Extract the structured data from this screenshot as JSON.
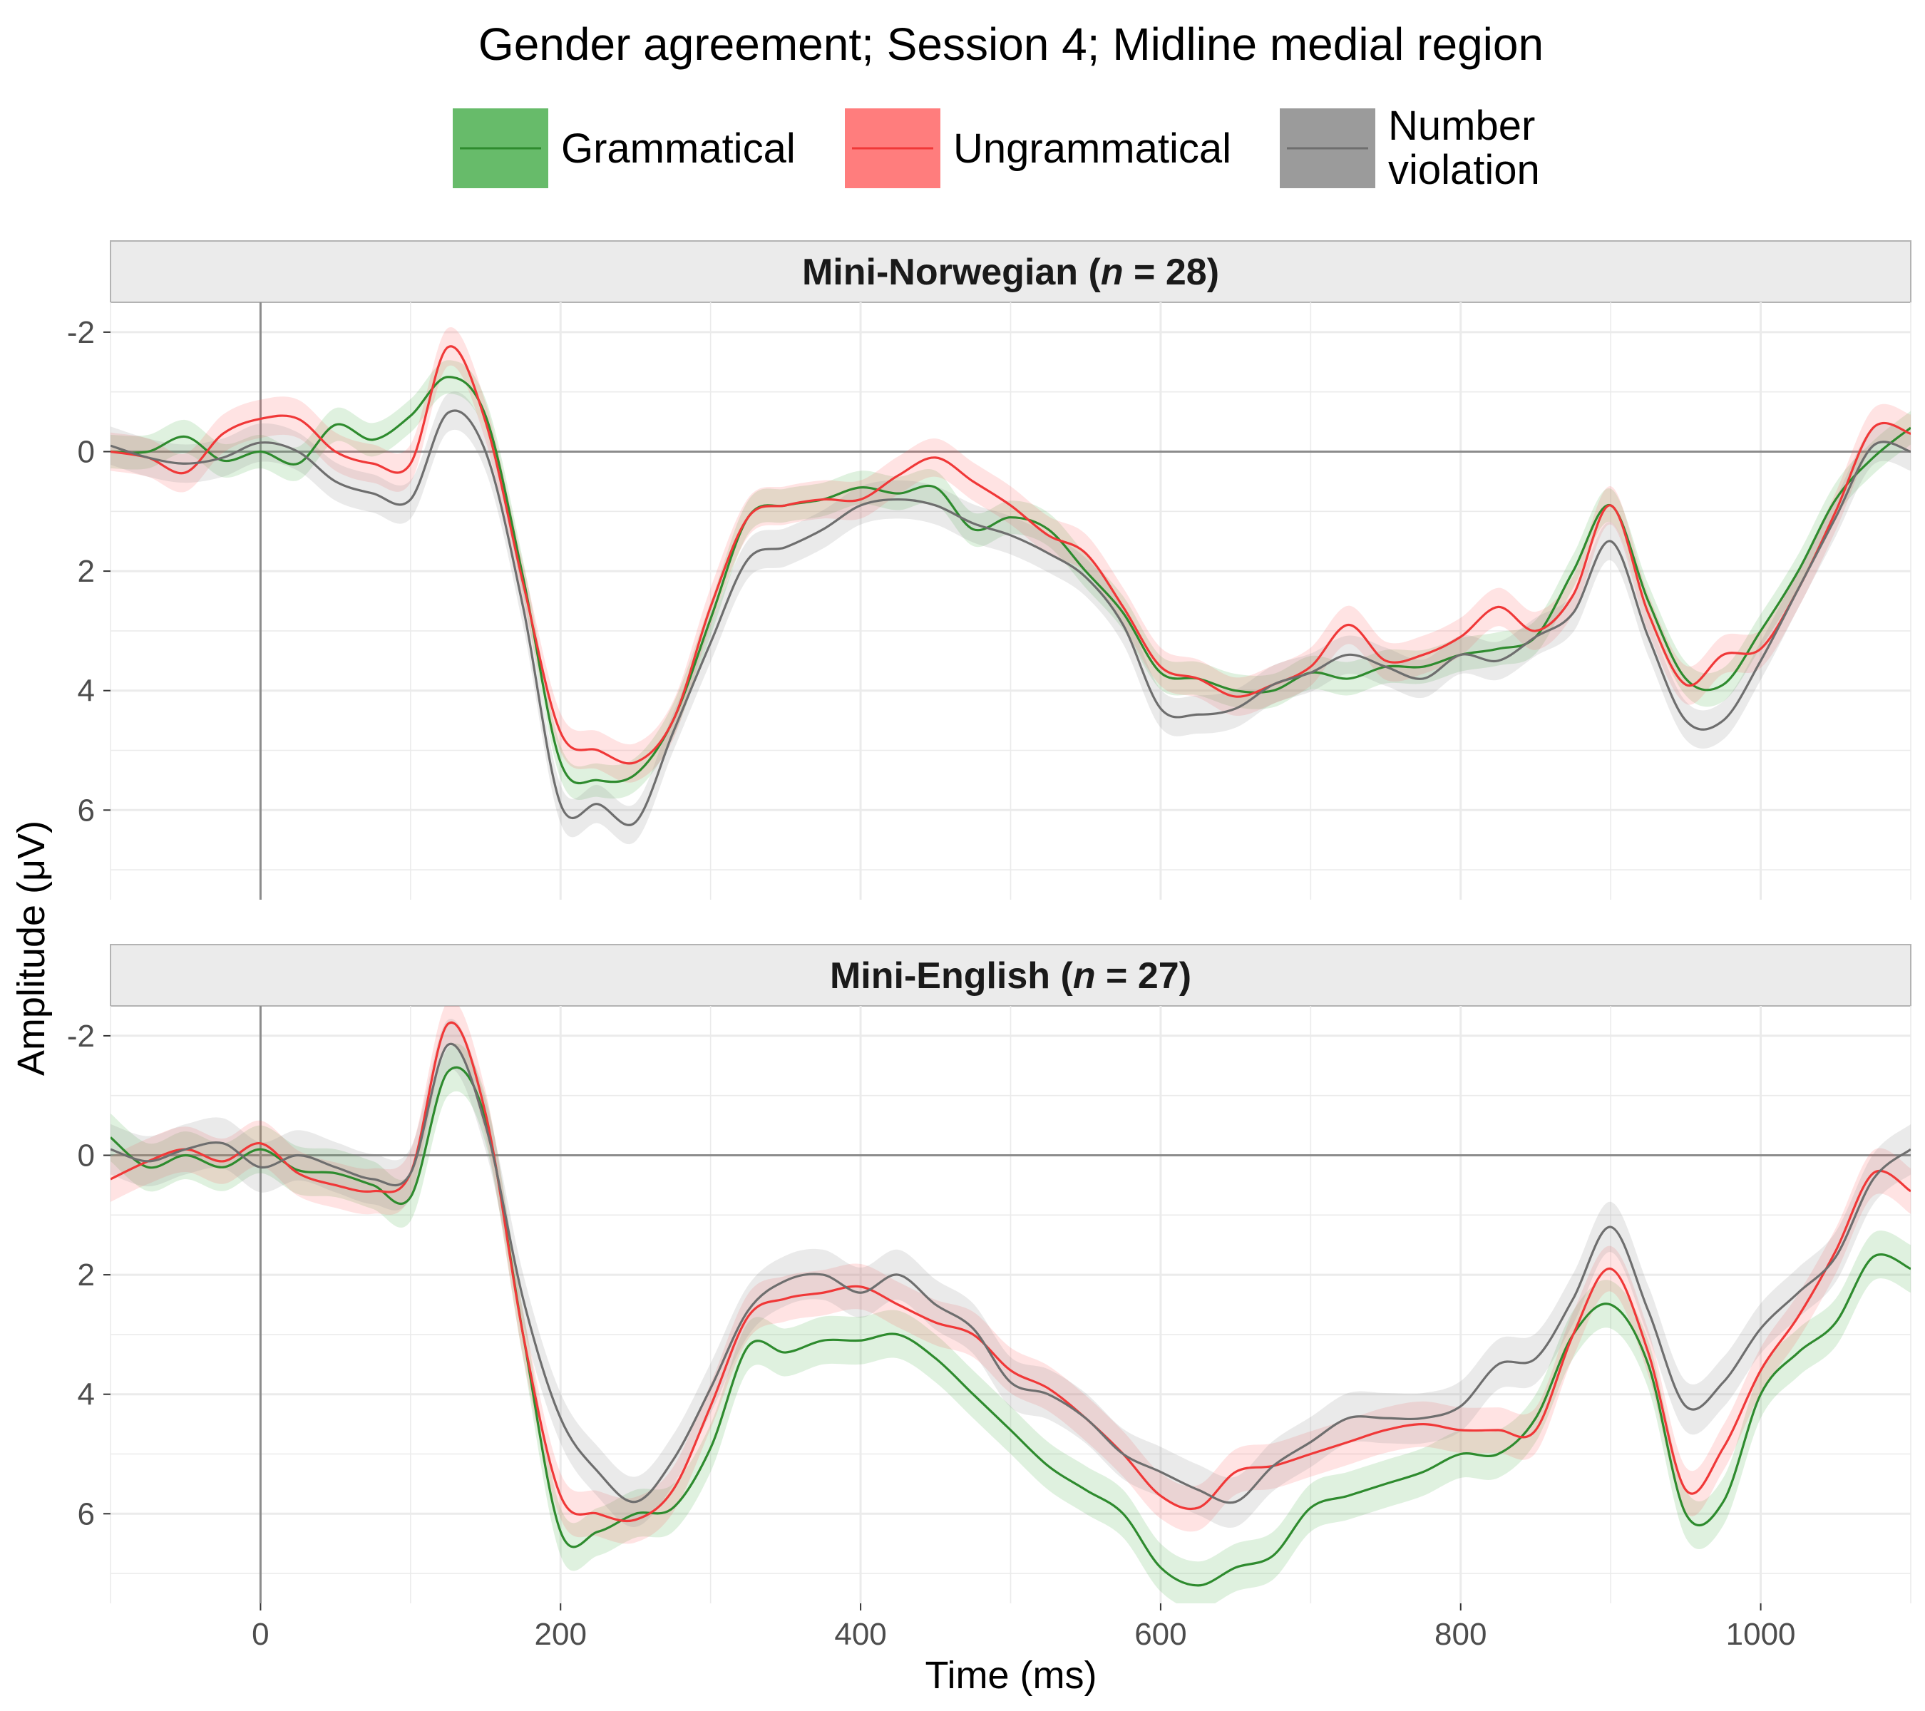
{
  "chart_data": {
    "type": "line",
    "title": "Gender agreement; Session 4; Midline medial region",
    "xlabel": "Time (ms)",
    "ylabel": "Amplitude (μV)",
    "xlim": [
      -100,
      1100
    ],
    "ylim_reversed": [
      -2.5,
      7.5
    ],
    "x_ticks": [
      0,
      200,
      400,
      600,
      800,
      1000
    ],
    "y_ticks": [
      -2,
      0,
      2,
      4,
      6
    ],
    "y_tick_labels": [
      "-2",
      "0",
      "2",
      "4",
      "6"
    ],
    "x_tick_labels": [
      "0",
      "200",
      "400",
      "600",
      "800",
      "1000"
    ],
    "grid": true,
    "legend_position": "top",
    "legend": [
      {
        "label": "Grammatical",
        "color": "#2e8b2e",
        "fill": "#4caf50"
      },
      {
        "label": "Ungrammatical",
        "color": "#f03838",
        "fill": "#ff6666"
      },
      {
        "label": "Number violation",
        "lines": [
          "Number",
          "violation"
        ],
        "color": "#6e6e6e",
        "fill": "#8a8a8a"
      }
    ],
    "x": [
      -100,
      -75,
      -50,
      -25,
      0,
      25,
      50,
      75,
      100,
      125,
      150,
      175,
      200,
      225,
      250,
      275,
      300,
      325,
      350,
      375,
      400,
      425,
      450,
      475,
      500,
      525,
      550,
      575,
      600,
      625,
      650,
      675,
      700,
      725,
      750,
      775,
      800,
      825,
      850,
      875,
      900,
      925,
      950,
      975,
      1000,
      1025,
      1050,
      1075,
      1100
    ],
    "panels": [
      {
        "label_parts": [
          "Mini-Norwegian (",
          "n",
          " = 28)"
        ],
        "series": [
          {
            "name": "Grammatical",
            "ci": 0.28,
            "values": [
              0.0,
              0.0,
              -0.25,
              0.15,
              0.0,
              0.2,
              -0.45,
              -0.2,
              -0.6,
              -1.25,
              -0.6,
              2.1,
              5.2,
              5.5,
              5.4,
              4.5,
              2.8,
              1.1,
              0.9,
              0.8,
              0.6,
              0.7,
              0.6,
              1.3,
              1.1,
              1.3,
              2.0,
              2.7,
              3.7,
              3.8,
              4.0,
              4.0,
              3.7,
              3.8,
              3.6,
              3.6,
              3.4,
              3.3,
              3.1,
              2.0,
              0.9,
              2.5,
              3.8,
              3.9,
              3.0,
              2.0,
              0.8,
              0.1,
              -0.4
            ]
          },
          {
            "name": "Ungrammatical",
            "ci": 0.32,
            "values": [
              0.0,
              0.1,
              0.35,
              -0.3,
              -0.55,
              -0.55,
              0.0,
              0.2,
              0.2,
              -1.75,
              -0.5,
              2.2,
              4.7,
              5.0,
              5.2,
              4.5,
              2.6,
              1.1,
              0.9,
              0.8,
              0.8,
              0.4,
              0.1,
              0.5,
              0.9,
              1.4,
              1.7,
              2.6,
              3.6,
              3.8,
              4.1,
              3.9,
              3.6,
              2.9,
              3.5,
              3.4,
              3.1,
              2.6,
              3.0,
              2.4,
              0.9,
              2.7,
              3.9,
              3.4,
              3.3,
              2.3,
              1.0,
              -0.4,
              -0.3
            ]
          },
          {
            "name": "Number violation",
            "ci": 0.32,
            "values": [
              -0.1,
              0.1,
              0.2,
              0.1,
              -0.15,
              0.0,
              0.5,
              0.7,
              0.8,
              -0.65,
              0.0,
              2.6,
              5.9,
              5.9,
              6.2,
              4.7,
              3.2,
              1.8,
              1.6,
              1.3,
              0.9,
              0.8,
              0.9,
              1.2,
              1.4,
              1.7,
              2.1,
              2.9,
              4.3,
              4.4,
              4.3,
              3.9,
              3.7,
              3.4,
              3.6,
              3.8,
              3.4,
              3.5,
              3.1,
              2.7,
              1.5,
              3.1,
              4.5,
              4.5,
              3.5,
              2.3,
              1.1,
              -0.1,
              0.0
            ]
          }
        ]
      },
      {
        "label_parts": [
          "Mini-English (",
          "n",
          " = 27)"
        ],
        "series": [
          {
            "name": "Grammatical",
            "ci": 0.4,
            "values": [
              -0.3,
              0.2,
              0.0,
              0.2,
              -0.1,
              0.25,
              0.3,
              0.5,
              0.7,
              -1.4,
              -0.6,
              3.0,
              6.3,
              6.3,
              6.0,
              5.9,
              4.9,
              3.2,
              3.3,
              3.1,
              3.1,
              3.0,
              3.4,
              4.0,
              4.6,
              5.2,
              5.6,
              6.0,
              6.9,
              7.2,
              6.9,
              6.7,
              5.9,
              5.7,
              5.5,
              5.3,
              5.0,
              5.0,
              4.4,
              3.0,
              2.5,
              3.5,
              6.0,
              5.8,
              4.0,
              3.3,
              2.8,
              1.7,
              1.9
            ]
          },
          {
            "name": "Ungrammatical",
            "ci": 0.38,
            "values": [
              0.4,
              0.1,
              -0.1,
              0.1,
              -0.2,
              0.3,
              0.5,
              0.6,
              0.3,
              -2.2,
              -0.7,
              3.0,
              5.7,
              6.0,
              6.1,
              5.6,
              4.2,
              2.7,
              2.4,
              2.3,
              2.2,
              2.5,
              2.8,
              3.0,
              3.6,
              3.9,
              4.4,
              5.0,
              5.7,
              5.9,
              5.3,
              5.2,
              5.0,
              4.8,
              4.6,
              4.5,
              4.6,
              4.6,
              4.6,
              3.0,
              1.9,
              3.3,
              5.6,
              4.9,
              3.6,
              2.7,
              1.6,
              0.3,
              0.6
            ]
          },
          {
            "name": "Number violation",
            "ci": 0.42,
            "values": [
              -0.1,
              0.1,
              -0.1,
              -0.2,
              0.2,
              0.0,
              0.2,
              0.4,
              0.3,
              -1.85,
              -0.5,
              2.4,
              4.4,
              5.3,
              5.8,
              5.1,
              3.9,
              2.6,
              2.1,
              2.0,
              2.3,
              2.0,
              2.5,
              2.9,
              3.8,
              4.0,
              4.4,
              5.0,
              5.3,
              5.6,
              5.8,
              5.2,
              4.8,
              4.4,
              4.4,
              4.4,
              4.2,
              3.5,
              3.4,
              2.4,
              1.2,
              2.6,
              4.2,
              3.8,
              2.9,
              2.3,
              1.7,
              0.4,
              -0.1
            ]
          }
        ]
      }
    ]
  }
}
